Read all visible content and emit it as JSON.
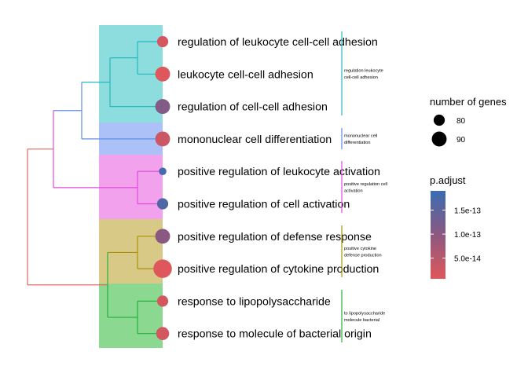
{
  "chart_data": {
    "type": "scatter",
    "subtype": "treeplot",
    "terms": [
      "regulation of leukocyte cell-cell adhesion",
      "leukocyte cell-cell adhesion",
      "regulation of cell-cell adhesion",
      "mononuclear cell differentiation",
      "positive regulation of leukocyte activation",
      "positive regulation of cell activation",
      "positive regulation of defense response",
      "positive regulation of cytokine production",
      "response to lipopolysaccharide",
      "response to molecule of bacterial origin"
    ],
    "count": [
      80,
      90,
      90,
      90,
      70,
      80,
      90,
      100,
      80,
      85
    ],
    "p_adjust": [
      2e-14,
      1e-14,
      1.1e-13,
      3e-14,
      1.8e-13,
      1.65e-13,
      1e-13,
      1e-14,
      2e-14,
      2e-14
    ],
    "clusters": [
      {
        "label": "regulation leukocyte cell-cell adhesion",
        "color": "#26b9be",
        "fill": "#8ddcde",
        "members": [
          0,
          1,
          2
        ]
      },
      {
        "label": "mononuclear cell differentiation",
        "color": "#5c8ee6",
        "fill": "#abc1f7",
        "members": [
          3
        ]
      },
      {
        "label": "positive regulation cell activation",
        "color": "#e14bdc",
        "fill": "#f2a1ed",
        "members": [
          4,
          5
        ]
      },
      {
        "label": "positive cytokine defense production",
        "color": "#a89408",
        "fill": "#d9c987",
        "members": [
          6,
          7
        ]
      },
      {
        "label": "to lipopolysaccharide molecule bacterial",
        "color": "#23b13c",
        "fill": "#8bd990",
        "members": [
          8,
          9
        ]
      }
    ],
    "tree_colors": {
      "root": "#e06666",
      "upper": "#5c8ee6"
    },
    "legend_size": {
      "title": "number of genes",
      "values": [
        80,
        90
      ]
    },
    "legend_color": {
      "title": "p.adjust",
      "ticks": [
        1.5e-13,
        1e-13,
        5e-14
      ],
      "tick_labels": [
        "1.5e-13",
        "1.0e-13",
        "5.0e-14"
      ],
      "range": [
        7e-15,
        1.9e-13
      ],
      "low_color": "#e0575b",
      "high_color": "#3a6db3"
    }
  }
}
